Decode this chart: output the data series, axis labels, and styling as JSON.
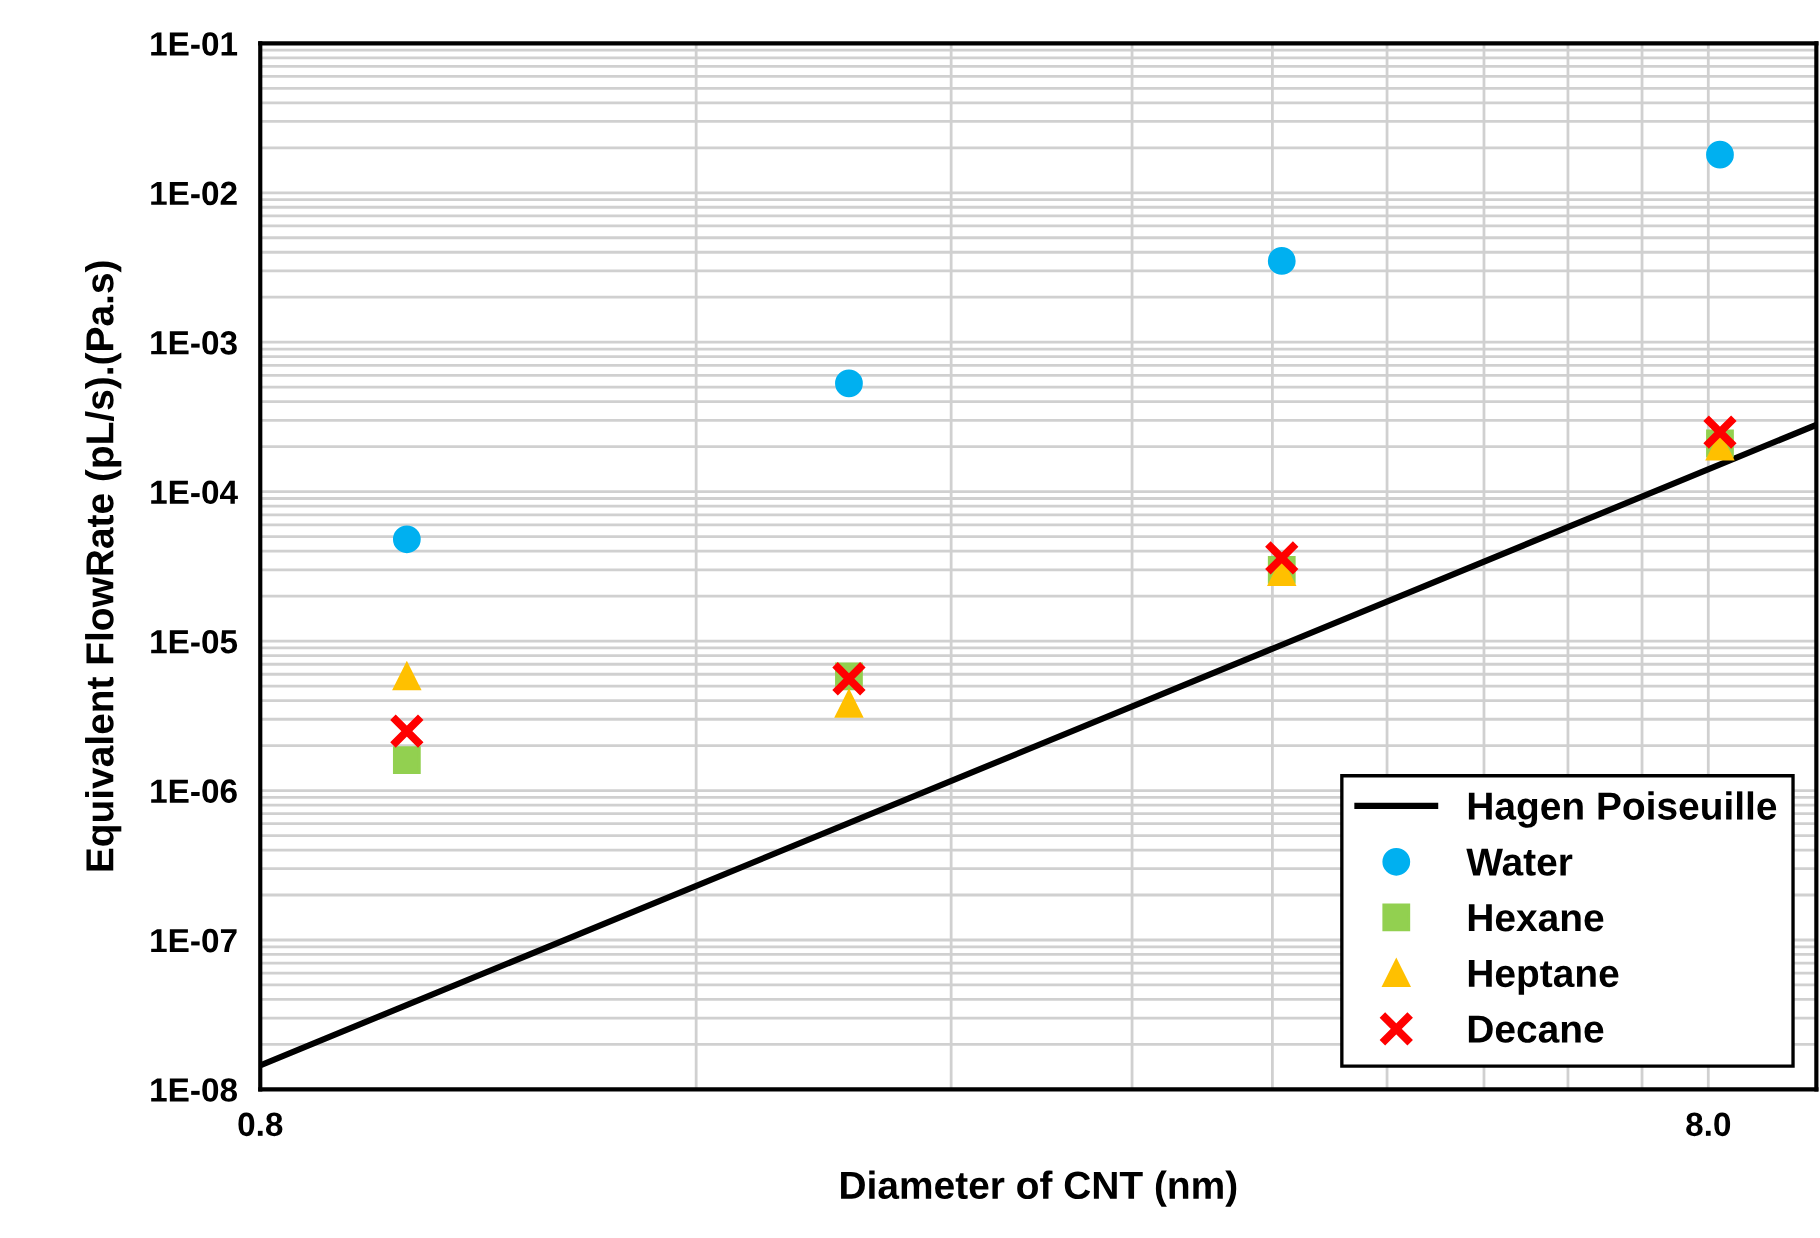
{
  "chart_data": {
    "type": "scatter",
    "xlabel": "Diameter of CNT (nm)",
    "ylabel": "Equivalent FlowRate (pL/s).(Pa.s)",
    "log": "xy",
    "grid": true,
    "legend": "bottom right",
    "xlim": [
      0.8,
      9.5
    ],
    "ylim": [
      1e-08,
      0.1
    ],
    "xticks": [
      {
        "value": 0.8,
        "label": "0.8"
      },
      {
        "value": 1.6,
        "label": null
      },
      {
        "value": 2.4,
        "label": null
      },
      {
        "value": 3.2,
        "label": null
      },
      {
        "value": 4.0,
        "label": null
      },
      {
        "value": 4.8,
        "label": null
      },
      {
        "value": 5.6,
        "label": null
      },
      {
        "value": 6.4,
        "label": null
      },
      {
        "value": 7.2,
        "label": null
      },
      {
        "value": 8.0,
        "label": "8.0"
      }
    ],
    "yticks": [
      {
        "value": 1e-08,
        "label": "1E-08"
      },
      {
        "value": 2e-08,
        "label": null
      },
      {
        "value": 3e-08,
        "label": null
      },
      {
        "value": 4e-08,
        "label": null
      },
      {
        "value": 5e-08,
        "label": null
      },
      {
        "value": 6e-08,
        "label": null
      },
      {
        "value": 7e-08,
        "label": null
      },
      {
        "value": 8e-08,
        "label": null
      },
      {
        "value": 9e-08,
        "label": null
      },
      {
        "value": 1e-07,
        "label": "1E-07"
      },
      {
        "value": 2e-07,
        "label": null
      },
      {
        "value": 3e-07,
        "label": null
      },
      {
        "value": 4e-07,
        "label": null
      },
      {
        "value": 5e-07,
        "label": null
      },
      {
        "value": 6e-07,
        "label": null
      },
      {
        "value": 7e-07,
        "label": null
      },
      {
        "value": 8e-07,
        "label": null
      },
      {
        "value": 9e-07,
        "label": null
      },
      {
        "value": 1e-06,
        "label": "1E-06"
      },
      {
        "value": 2e-06,
        "label": null
      },
      {
        "value": 3e-06,
        "label": null
      },
      {
        "value": 4e-06,
        "label": null
      },
      {
        "value": 5e-06,
        "label": null
      },
      {
        "value": 6e-06,
        "label": null
      },
      {
        "value": 7e-06,
        "label": null
      },
      {
        "value": 8e-06,
        "label": null
      },
      {
        "value": 9e-06,
        "label": null
      },
      {
        "value": 1e-05,
        "label": "1E-05"
      },
      {
        "value": 2e-05,
        "label": null
      },
      {
        "value": 3e-05,
        "label": null
      },
      {
        "value": 4e-05,
        "label": null
      },
      {
        "value": 5e-05,
        "label": null
      },
      {
        "value": 6e-05,
        "label": null
      },
      {
        "value": 7e-05,
        "label": null
      },
      {
        "value": 8e-05,
        "label": null
      },
      {
        "value": 9e-05,
        "label": null
      },
      {
        "value": 0.0001,
        "label": "1E-04"
      },
      {
        "value": 0.0002,
        "label": null
      },
      {
        "value": 0.0003,
        "label": null
      },
      {
        "value": 0.0004,
        "label": null
      },
      {
        "value": 0.0005,
        "label": null
      },
      {
        "value": 0.0006,
        "label": null
      },
      {
        "value": 0.0007,
        "label": null
      },
      {
        "value": 0.0008,
        "label": null
      },
      {
        "value": 0.0009,
        "label": null
      },
      {
        "value": 0.001,
        "label": "1E-03"
      },
      {
        "value": 0.002,
        "label": null
      },
      {
        "value": 0.003,
        "label": null
      },
      {
        "value": 0.004,
        "label": null
      },
      {
        "value": 0.005,
        "label": null
      },
      {
        "value": 0.006,
        "label": null
      },
      {
        "value": 0.007,
        "label": null
      },
      {
        "value": 0.008,
        "label": null
      },
      {
        "value": 0.009,
        "label": null
      },
      {
        "value": 0.01,
        "label": "1E-02"
      },
      {
        "value": 0.02,
        "label": null
      },
      {
        "value": 0.03,
        "label": null
      },
      {
        "value": 0.04,
        "label": null
      },
      {
        "value": 0.05,
        "label": null
      },
      {
        "value": 0.06,
        "label": null
      },
      {
        "value": 0.07,
        "label": null
      },
      {
        "value": 0.08,
        "label": null
      },
      {
        "value": 0.09,
        "label": null
      },
      {
        "value": 0.1,
        "label": "1E-01"
      }
    ],
    "series": [
      {
        "name": "Hagen Poiseuille",
        "type": "line",
        "color": "#000000",
        "marker": "none",
        "line_style": "solid",
        "x": [
          0.8,
          9.5
        ],
        "values": [
          1.45e-08,
          0.00028
        ]
      },
      {
        "name": "Water",
        "color": "#00b0f0",
        "marker": "circle",
        "x": [
          1.01,
          2.04,
          4.06,
          8.15
        ],
        "values": [
          4.8e-05,
          0.00053,
          0.0035,
          0.018
        ]
      },
      {
        "name": "Hexane",
        "color": "#92d050",
        "marker": "square",
        "x": [
          1.01,
          2.04,
          4.06,
          8.15
        ],
        "values": [
          1.6e-06,
          5.8e-06,
          3e-05,
          0.00021
        ]
      },
      {
        "name": "Heptane",
        "color": "#ffc000",
        "marker": "triangle",
        "x": [
          1.01,
          2.04,
          4.06,
          8.15
        ],
        "values": [
          5.8e-06,
          3.8e-06,
          2.9e-05,
          0.0002
        ]
      },
      {
        "name": "Decane",
        "color": "#ff0000",
        "marker": "cross",
        "x": [
          1.01,
          2.04,
          4.06,
          8.15
        ],
        "values": [
          2.5e-06,
          5.6e-06,
          3.6e-05,
          0.00025
        ]
      }
    ]
  }
}
